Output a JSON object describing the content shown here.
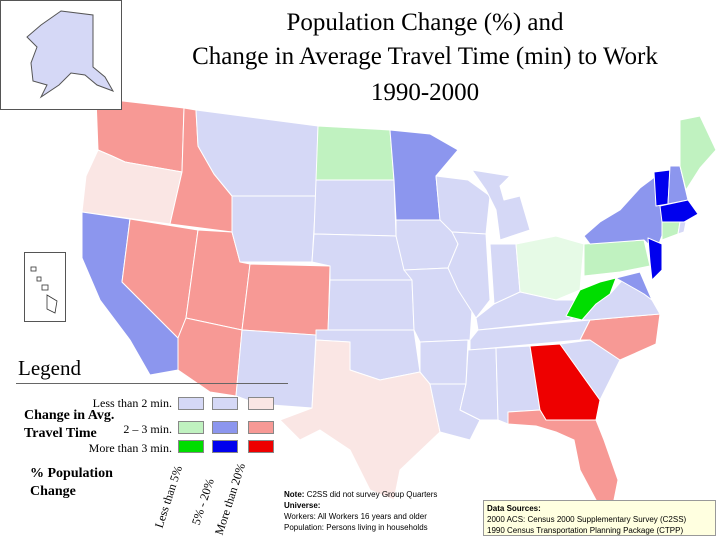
{
  "title": {
    "line1": "Population Change (%) and",
    "line2": "Change in Average Travel Time (min) to Work",
    "line3": "1990-2000"
  },
  "legend": {
    "title": "Legend",
    "axis_label_travel": "Change in Avg. Travel Time",
    "axis_label_travel_1": "Change in Avg.",
    "axis_label_travel_2": "Travel Time",
    "axis_label_pop_1": "% Population",
    "axis_label_pop_2": "Change",
    "rows": [
      "Less than 2 min.",
      "2 – 3 min.",
      "More than 3 min."
    ],
    "columns": [
      "Less than 5%",
      "5% - 20%",
      "More than 20%"
    ],
    "colors": [
      [
        "#d5d8f6",
        "#d5d8f6",
        "#fae6e4"
      ],
      [
        "#c0f2c0",
        "#8c96ee",
        "#f79995"
      ],
      [
        "#00dd00",
        "#0000ee",
        "#ee0000"
      ]
    ]
  },
  "note": {
    "line1_label": "Note:",
    "line1_text": "C2SS did not survey Group Quarters",
    "line2_label": "Universe:",
    "line3": "Workers: All Workers 16 years and older",
    "line4": "Population: Persons living in households"
  },
  "sources": {
    "label": "Data Sources:",
    "line1": "2000 ACS: Census 2000 Supplementary Survey (C2SS)",
    "line2": "1990 Census Transportation Planning Package (CTPP)"
  },
  "states": [
    {
      "name": "Washington",
      "category": "More than 20% / 2 – 3 min."
    },
    {
      "name": "Oregon",
      "category": "More than 20% / Less than 2 min."
    },
    {
      "name": "California",
      "category": "5% - 20% / 2 – 3 min."
    },
    {
      "name": "Idaho",
      "category": "More than 20% / 2 – 3 min."
    },
    {
      "name": "Nevada",
      "category": "More than 20% / 2 – 3 min."
    },
    {
      "name": "Utah",
      "category": "More than 20% / 2 – 3 min."
    },
    {
      "name": "Arizona",
      "category": "More than 20% / 2 – 3 min."
    },
    {
      "name": "Colorado",
      "category": "More than 20% / 2 – 3 min."
    },
    {
      "name": "Texas",
      "category": "More than 20% / Less than 2 min."
    },
    {
      "name": "North Dakota",
      "category": "Less than 5% / 2 – 3 min."
    },
    {
      "name": "Minnesota",
      "category": "5% - 20% / 2 – 3 min."
    },
    {
      "name": "New York",
      "category": "5% - 20% / 2 – 3 min."
    },
    {
      "name": "Pennsylvania",
      "category": "Less than 5% / 2 – 3 min."
    },
    {
      "name": "Ohio",
      "category": "Less than 5% / Less than 2 min."
    },
    {
      "name": "West Virginia",
      "category": "Less than 5% / More than 3 min."
    },
    {
      "name": "Vermont",
      "category": "5% - 20% / More than 3 min."
    },
    {
      "name": "Massachusetts",
      "category": "5% - 20% / More than 3 min."
    },
    {
      "name": "New Jersey",
      "category": "5% - 20% / More than 3 min."
    },
    {
      "name": "North Carolina",
      "category": "More than 20% / 2 – 3 min."
    },
    {
      "name": "Georgia",
      "category": "More than 20% / More than 3 min."
    },
    {
      "name": "Florida",
      "category": "More than 20% / 2 – 3 min."
    },
    {
      "name": "Alaska",
      "category": "5% - 20% / Less than 2 min."
    }
  ]
}
